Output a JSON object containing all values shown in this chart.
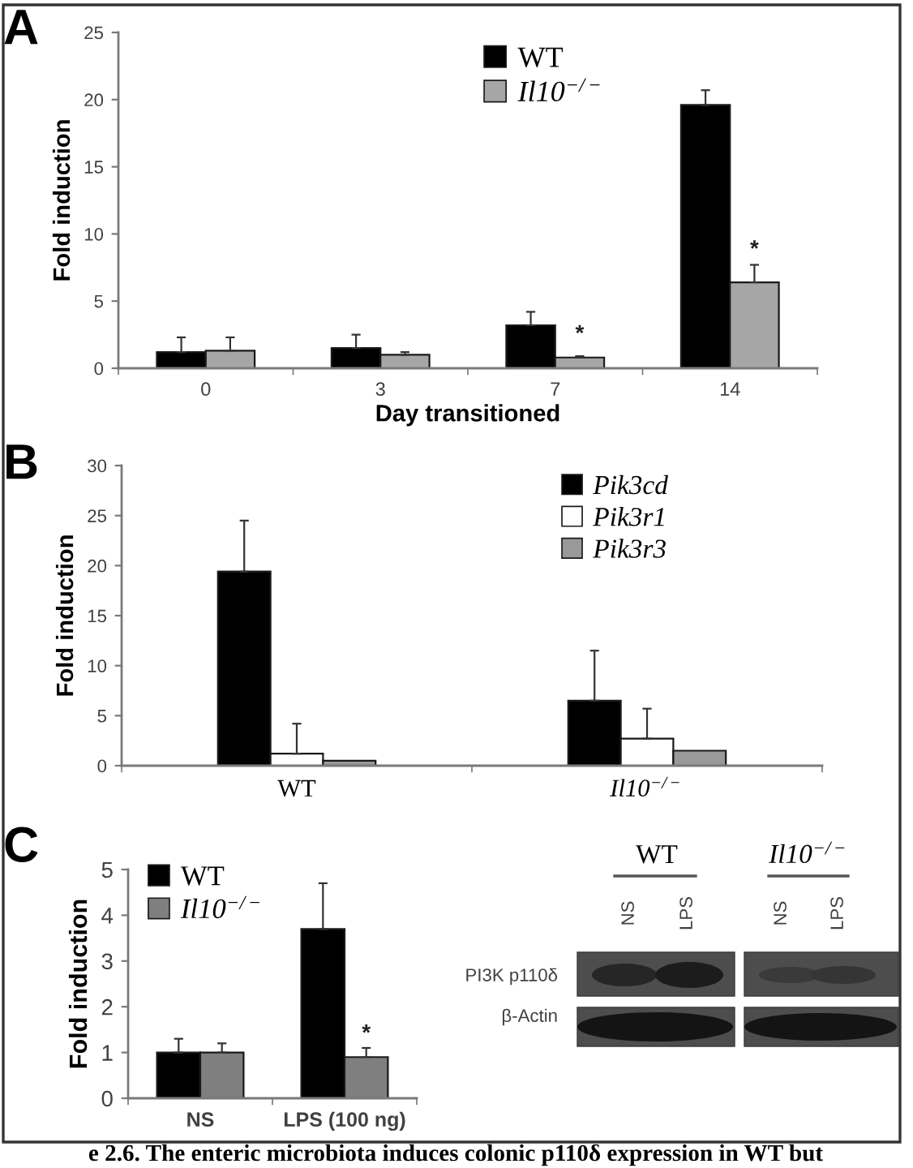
{
  "chart_data": [
    {
      "type": "bar",
      "title": "A",
      "categories": [
        "0",
        "3",
        "7",
        "14"
      ],
      "xlabel": "Day transitioned",
      "ylabel": "Fold induction",
      "series": [
        {
          "name": "WT",
          "color": "#000000",
          "values": [
            1.2,
            1.5,
            3.2,
            19.6
          ],
          "errors": [
            [
              1.2,
              2.3
            ],
            [
              1.5,
              2.5
            ],
            [
              3.2,
              4.2
            ],
            [
              19.6,
              20.7
            ]
          ]
        },
        {
          "name": "Il10$^{−/−}$",
          "color": "#a6a6a6",
          "values": [
            1.3,
            1.0,
            0.8,
            6.4
          ],
          "errors": [
            [
              1.3,
              2.3
            ],
            [
              1.0,
              1.2
            ],
            [
              0.8,
              0.9
            ],
            [
              6.4,
              7.7
            ]
          ]
        }
      ],
      "ylim": [
        0,
        25
      ],
      "yticks": [
        0,
        5,
        10,
        15,
        20,
        25
      ],
      "legend": "top",
      "annotations": [
        {
          "text": "*",
          "x": "7",
          "y": 2.5
        },
        {
          "text": "*",
          "x": "14",
          "y": 8.8
        }
      ]
    },
    {
      "type": "bar",
      "title": "B",
      "categories": [
        "WT",
        "Il10$^{−/−}$"
      ],
      "ylabel": "Fold induction",
      "series": [
        {
          "name": "Pik3cd",
          "color": "#000000",
          "values": [
            19.4,
            6.5
          ],
          "errors": [
            [
              19.4,
              24.5
            ],
            [
              6.5,
              11.5
            ]
          ]
        },
        {
          "name": "Pik3r1",
          "color": "#ffffff",
          "values": [
            1.2,
            2.7
          ],
          "errors": [
            [
              1.2,
              4.2
            ],
            [
              2.7,
              5.7
            ]
          ]
        },
        {
          "name": "Pik3r3",
          "color": "#999999",
          "values": [
            0.5,
            1.5
          ]
        }
      ],
      "ylim": [
        0,
        30
      ],
      "yticks": [
        0,
        5,
        10,
        15,
        20,
        25,
        30
      ],
      "legend": "top right"
    },
    {
      "type": "bar",
      "title": "C",
      "categories": [
        "NS",
        "LPS (100 ng)"
      ],
      "ylabel": "Fold induction",
      "series": [
        {
          "name": "WT",
          "color": "#000000",
          "values": [
            1.0,
            3.7
          ],
          "errors": [
            [
              1.0,
              1.3
            ],
            [
              3.7,
              4.7
            ]
          ]
        },
        {
          "name": "Il10$^{−/−}$",
          "color": "#7f7f7f",
          "values": [
            1.0,
            0.9
          ],
          "errors": [
            [
              1.0,
              1.2
            ],
            [
              0.9,
              1.1
            ]
          ]
        }
      ],
      "ylim": [
        0,
        5
      ],
      "yticks": [
        0,
        1,
        2,
        3,
        4,
        5
      ],
      "legend": "top left",
      "annotations": [
        {
          "text": "*",
          "x": "LPS (100 ng)",
          "y": 1.4
        }
      ]
    },
    {
      "type": "other",
      "annotations": [
        "WT",
        "Il10$^{−/−}$",
        "NS",
        "LPS",
        "NS",
        "LPS",
        "PI3K p110δ",
        "β-Actin",
        "e 2.6. The enteric microbiota induces colonic p110δ expression in WT but"
      ]
    }
  ]
}
